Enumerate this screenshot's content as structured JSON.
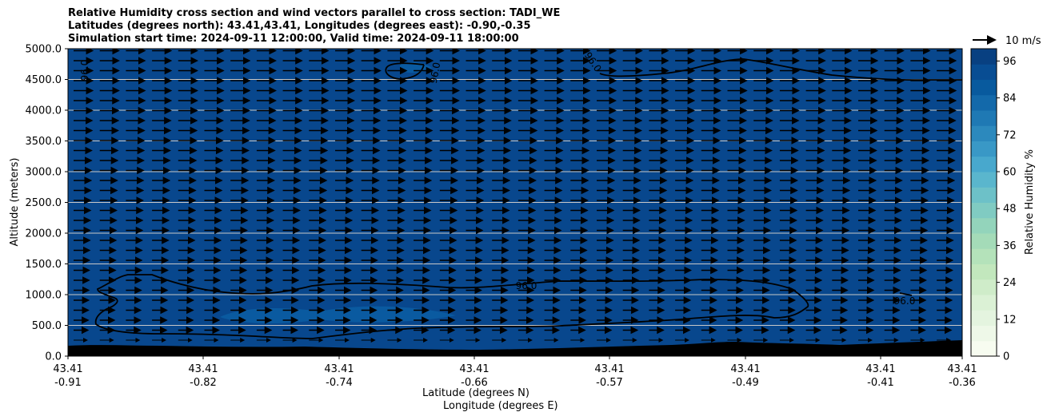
{
  "title_lines": [
    "Relative Humidity cross section and wind vectors parallel to cross section: TADI_WE",
    "Latitudes (degrees north): 43.41,43.41, Longitudes (degrees east): -0.90,-0.35",
    "Simulation start time: 2024-09-11 12:00:00, Valid time: 2024-09-11 18:00:00"
  ],
  "xlabel_lat": "Latitude (degrees N)",
  "xlabel_lon": "Longitude (degrees E)",
  "ylabel": "Altitude (meters)",
  "colorbar_label": "Relative Humidity %",
  "quiver_key_label": "10 m/s",
  "colors": {
    "background_field": "#08478d",
    "field_moist_patch": "#0a5aa0",
    "terrain": "#000000",
    "grid": "#c8c8c8",
    "arrow": "#000000"
  },
  "colorbar_colors": [
    "#f7fcf0",
    "#eef8e8",
    "#e4f4df",
    "#dbf1d5",
    "#cfecc9",
    "#c2e7bd",
    "#b4e2ba",
    "#a4dbb8",
    "#93d4bb",
    "#80cbc2",
    "#6dc1c8",
    "#5ab6cd",
    "#48a8cd",
    "#3998c6",
    "#2c89bd",
    "#1f79b4",
    "#1369aa",
    "#085a9e",
    "#084d93",
    "#084081"
  ],
  "chart_data": {
    "type": "contourf",
    "x_ticks": [
      {
        "lat": "43.41",
        "lon": "-0.91"
      },
      {
        "lat": "43.41",
        "lon": "-0.82"
      },
      {
        "lat": "43.41",
        "lon": "-0.74"
      },
      {
        "lat": "43.41",
        "lon": "-0.66"
      },
      {
        "lat": "43.41",
        "lon": "-0.57"
      },
      {
        "lat": "43.41",
        "lon": "-0.49"
      },
      {
        "lat": "43.41",
        "lon": "-0.41"
      },
      {
        "lat": "43.41",
        "lon": "-0.36"
      }
    ],
    "y_ticks": [
      "0.0",
      "500.0",
      "1000.0",
      "1500.0",
      "2000.0",
      "2500.0",
      "3000.0",
      "3500.0",
      "4000.0",
      "4500.0",
      "5000.0"
    ],
    "ylim": [
      0,
      5000
    ],
    "colorbar_ticks": [
      "0",
      "12",
      "24",
      "36",
      "48",
      "60",
      "72",
      "84",
      "96"
    ],
    "colorbar_range": [
      0,
      100
    ],
    "contour_level": 96.0,
    "contour_labels": [
      "96.0",
      "96.0",
      "96.0",
      "96.0",
      "96.0"
    ],
    "wind_vectors": "westerly, roughly uniform ~10 m/s throughout section",
    "grid": "horizontal"
  }
}
